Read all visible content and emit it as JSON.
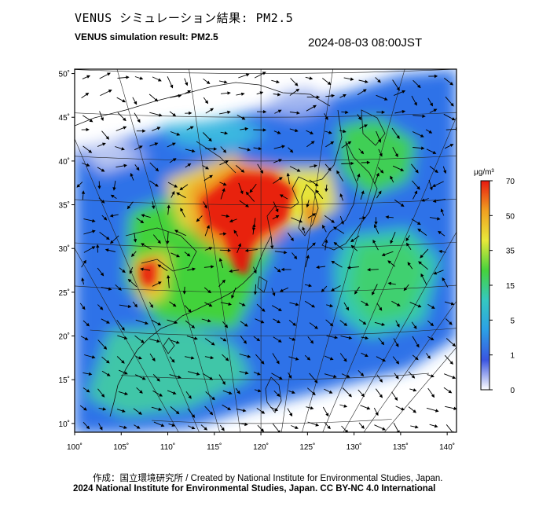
{
  "title_jp": "VENUS シミュレーション結果: PM2.5",
  "title_en": "VENUS simulation result: PM2.5",
  "datetime": "2024-08-03 08:00JST",
  "map": {
    "lon_ticks": [
      "100˚",
      "105˚",
      "110˚",
      "115˚",
      "120˚",
      "125˚",
      "130˚",
      "135˚",
      "140˚"
    ],
    "lat_ticks": [
      "10˚",
      "15˚",
      "20˚",
      "25˚",
      "30˚",
      "35˚",
      "40˚",
      "45˚",
      "50˚"
    ],
    "lon_range": [
      100,
      141
    ],
    "lat_range": [
      9,
      50.5
    ]
  },
  "colorbar": {
    "unit": "μg/m³",
    "ticks": [
      "0",
      "1",
      "5",
      "15",
      "35",
      "50",
      "70"
    ],
    "colors": [
      "#ffffff",
      "#3a55e0",
      "#2ca0e6",
      "#35c8c0",
      "#46d23c",
      "#e8e83a",
      "#f0a020",
      "#e81a10"
    ]
  },
  "credit_line1": "作成：国立環境研究所 / Created by National Institute for Environmental Studies, Japan.",
  "credit_line2": "2024 National Institute for Environmental Studies, Japan. CC BY-NC 4.0 International"
}
